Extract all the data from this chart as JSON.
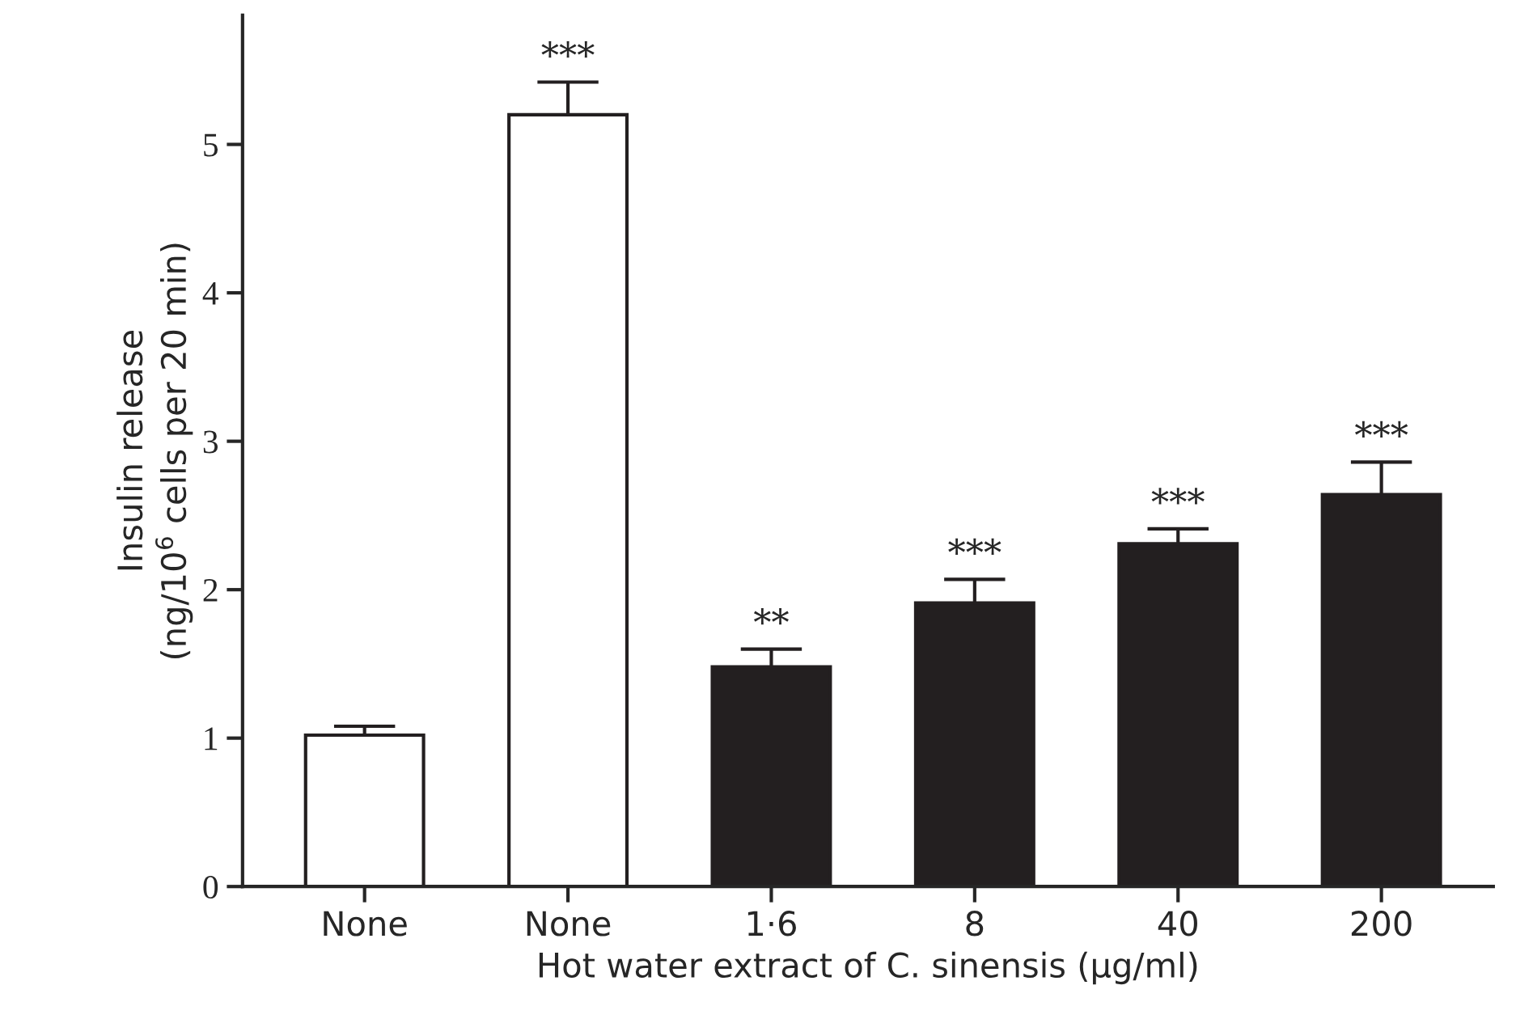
{
  "chart_data": {
    "type": "bar",
    "categories": [
      "None",
      "None",
      "1·6",
      "8",
      "40",
      "200"
    ],
    "values": [
      1.02,
      5.2,
      1.48,
      1.91,
      2.31,
      2.64
    ],
    "errors": [
      [
        1.02,
        1.08
      ],
      [
        5.2,
        5.42
      ],
      [
        1.48,
        1.6
      ],
      [
        1.91,
        2.07
      ],
      [
        2.31,
        2.41
      ],
      [
        2.64,
        2.86
      ]
    ],
    "colors": [
      "#ffffff",
      "#ffffff",
      "#231f20",
      "#231f20",
      "#231f20",
      "#231f20"
    ],
    "value_labels": [
      null,
      "***",
      "**",
      "***",
      "***",
      "***"
    ],
    "xlabel": "Hot water extract of C. sinensis (µg/ml)",
    "ylabel": "Insulin release\n(ng/10$^{6}$ cells per 20 min)",
    "ylim": [
      0,
      5.87
    ],
    "yticks": [
      0,
      1,
      2,
      3,
      4,
      5
    ],
    "grid": false,
    "legend": false
  }
}
